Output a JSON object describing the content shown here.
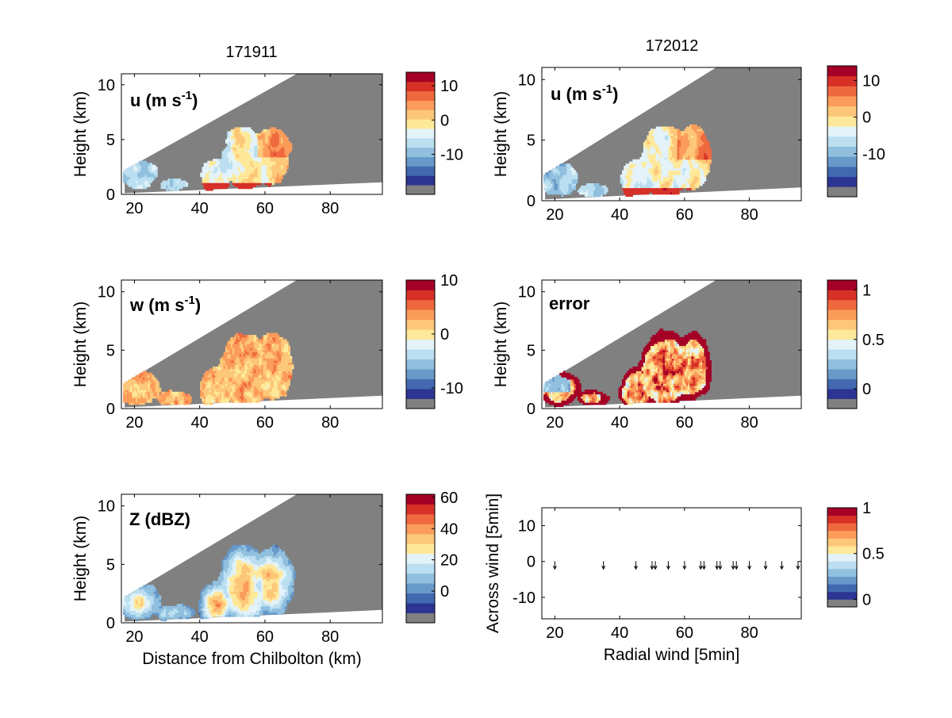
{
  "figure": {
    "column_titles": [
      "171911",
      "172012"
    ]
  },
  "colors": {
    "cmap": [
      "#2c3593",
      "#4269b0",
      "#6799c9",
      "#91c0df",
      "#bbdff0",
      "#e3f3f9",
      "#fee99a",
      "#fdc779",
      "#fb9c5a",
      "#ef693e",
      "#d73027",
      "#a50026"
    ],
    "masked": "#808080",
    "plot_bg": "#ffffff"
  },
  "chart_data": [
    {
      "id": "u1",
      "type": "heatmap",
      "column_title": "171911",
      "label": "u (m s",
      "label_sup": "-1",
      "label_close": ")",
      "ylabel": "Height (km)",
      "xlabel": "",
      "xlim": [
        16,
        96
      ],
      "ylim": [
        0,
        11
      ],
      "xticks": [
        "20",
        "40",
        "60",
        "80"
      ],
      "yticks": [
        "0",
        "5",
        "10"
      ],
      "cbar": {
        "vmin": -19,
        "vmax": 14,
        "ticks": [
          "10",
          "0",
          "-10"
        ]
      },
      "field": "u"
    },
    {
      "id": "u2",
      "type": "heatmap",
      "column_title": "172012",
      "label": "u (m s",
      "label_sup": "-1",
      "label_close": ")",
      "ylabel": "Height (km)",
      "xlabel": "",
      "xlim": [
        16,
        96
      ],
      "ylim": [
        0,
        11
      ],
      "xticks": [
        "20",
        "40",
        "60",
        "80"
      ],
      "yticks": [
        "0",
        "5",
        "10"
      ],
      "cbar": {
        "vmin": -19,
        "vmax": 14,
        "ticks": [
          "10",
          "0",
          "-10"
        ]
      },
      "field": "u"
    },
    {
      "id": "w",
      "type": "heatmap",
      "column_title": "",
      "label": "w (m s",
      "label_sup": "-1",
      "label_close": ")",
      "ylabel": "Height (km)",
      "xlabel": "",
      "xlim": [
        16,
        96
      ],
      "ylim": [
        0,
        11
      ],
      "xticks": [
        "20",
        "40",
        "60",
        "80"
      ],
      "yticks": [
        "0",
        "5",
        "10"
      ],
      "cbar": {
        "vmin": -12,
        "vmax": 10,
        "ticks": [
          "10",
          "0",
          "-10"
        ]
      },
      "field": "w"
    },
    {
      "id": "err",
      "type": "heatmap",
      "column_title": "",
      "label": "error",
      "label_sup": "",
      "label_close": "",
      "ylabel": "Height (km)",
      "xlabel": "",
      "xlim": [
        16,
        96
      ],
      "ylim": [
        0,
        11
      ],
      "xticks": [
        "20",
        "40",
        "60",
        "80"
      ],
      "yticks": [
        "0",
        "5",
        "10"
      ],
      "cbar": {
        "vmin": -0.1,
        "vmax": 1.1,
        "ticks": [
          "1",
          "0.5",
          "0"
        ]
      },
      "field": "error"
    },
    {
      "id": "z",
      "type": "heatmap",
      "column_title": "",
      "label": "Z (dBZ)",
      "label_sup": "",
      "label_close": "",
      "ylabel": "Height (km)",
      "xlabel": "Distance from Chilbolton (km)",
      "xlim": [
        16,
        96
      ],
      "ylim": [
        0,
        11
      ],
      "xticks": [
        "20",
        "40",
        "60",
        "80"
      ],
      "yticks": [
        "0",
        "5",
        "10"
      ],
      "cbar": {
        "vmin": -14,
        "vmax": 62,
        "ticks": [
          "60",
          "40",
          "20",
          "0"
        ]
      },
      "field": "z"
    },
    {
      "id": "q",
      "type": "scatter",
      "column_title": "",
      "label": "",
      "label_sup": "",
      "label_close": "",
      "ylabel": "Across wind [5min]",
      "xlabel": "Radial wind [5min]",
      "xlim": [
        16,
        96
      ],
      "ylim": [
        -16,
        15
      ],
      "xticks": [
        "20",
        "40",
        "60",
        "80"
      ],
      "yticks": [
        "-10",
        "0",
        "10"
      ],
      "cbar": {
        "vmin": 0,
        "vmax": 1,
        "ticks": [
          "1",
          "0.5",
          "0"
        ]
      },
      "x": [
        20,
        35,
        45,
        50,
        51,
        55,
        60,
        65,
        66,
        70,
        71,
        75,
        76,
        80,
        85,
        90,
        95
      ],
      "y": [
        -1,
        -1,
        -1,
        -1,
        -1,
        -1,
        -1,
        -1,
        -1,
        -1,
        -1,
        -1,
        -1,
        -1,
        -1,
        -1,
        -1
      ]
    }
  ]
}
